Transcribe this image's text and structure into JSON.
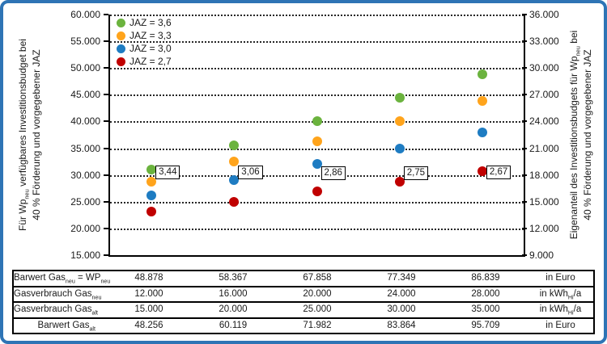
{
  "frame": {
    "border_color": "#2E74B5"
  },
  "chart_data": {
    "type": "scatter",
    "title": "",
    "left_axis": {
      "title_line1": "Für Wp_{neu} verfügbares Investitionsbudget bei",
      "title_line2": "40 % Förderung und vorgegebener JAZ",
      "min": 15000,
      "max": 60000,
      "step": 5000,
      "tick_labels": [
        "60.000",
        "55.000",
        "50.000",
        "45.000",
        "40.000",
        "35.000",
        "30.000",
        "25.000",
        "20.000",
        "15.000"
      ]
    },
    "right_axis": {
      "title_line1": "Eigenanteil des Investitionsbudgets für Wp_{neu} bei",
      "title_line2": "40 % Förderung und vorgegebener JAZ",
      "min": 9000,
      "max": 36000,
      "step": 3000,
      "tick_labels": [
        "36.000",
        "33.000",
        "30.000",
        "27.000",
        "24.000",
        "21.000",
        "18.000",
        "15.000",
        "12.000",
        "9.000"
      ]
    },
    "x_axis": {
      "labels_visible": false,
      "n_points": 5
    },
    "grid": "horizontal-dotted",
    "legend_position": "top-left-inside",
    "series": [
      {
        "name": "JAZ = 3,6",
        "color": "#6BB33E",
        "values": [
          31000,
          35500,
          40000,
          44400,
          48800
        ]
      },
      {
        "name": "JAZ = 3,3",
        "color": "#FFA41C",
        "values": [
          28800,
          32500,
          36300,
          40100,
          43800
        ]
      },
      {
        "name": "JAZ = 3,0",
        "color": "#1E7CC2",
        "values": [
          26100,
          29100,
          32100,
          35000,
          38000
        ]
      },
      {
        "name": "JAZ = 2,7",
        "color": "#C00000",
        "values": [
          23200,
          25000,
          26900,
          28800,
          30700
        ]
      }
    ],
    "annotations": [
      {
        "label": "3,44",
        "column": 0,
        "value": 30500
      },
      {
        "label": "3,06",
        "column": 1,
        "value": 30500
      },
      {
        "label": "2,86",
        "column": 2,
        "value": 30300
      },
      {
        "label": "2,75",
        "column": 3,
        "value": 30300
      },
      {
        "label": "2,67",
        "column": 4,
        "value": 30500
      }
    ]
  },
  "table": {
    "rows": [
      {
        "label": "Barwert Gas_{neu} = WP_{neu}",
        "values": [
          "48.878",
          "58.367",
          "67.858",
          "77.349",
          "86.839"
        ],
        "unit": "in Euro"
      },
      {
        "label": "Gasverbrauch Gas_{neu}",
        "values": [
          "12.000",
          "16.000",
          "20.000",
          "24.000",
          "28.000"
        ],
        "unit": "in kWh_{Hi}/a"
      },
      {
        "label": "Gasverbrauch Gas_{alt}",
        "values": [
          "15.000",
          "20.000",
          "25.000",
          "30.000",
          "35.000"
        ],
        "unit": "in kWh_{Hi}/a"
      },
      {
        "label": "Barwert Gas_{alt}",
        "values": [
          "48.256",
          "60.119",
          "71.982",
          "83.864",
          "95.709"
        ],
        "unit": "in Euro"
      }
    ]
  }
}
